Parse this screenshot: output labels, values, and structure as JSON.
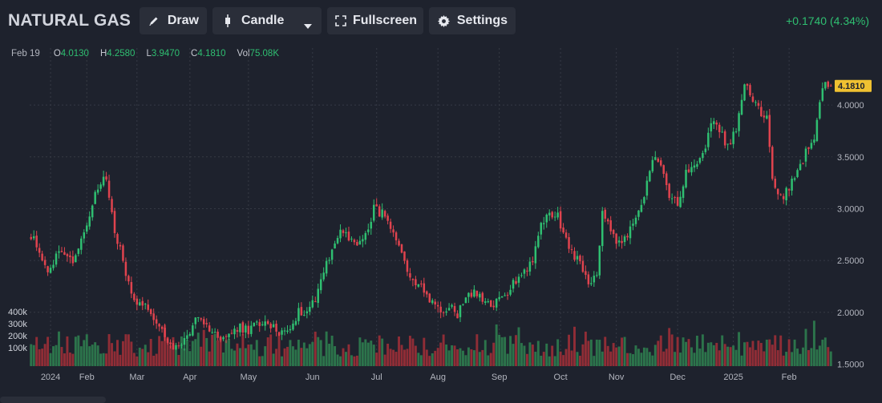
{
  "header": {
    "symbol": "NATURAL GAS",
    "draw_label": "Draw",
    "candle_label": "Candle",
    "fullscreen_label": "Fullscreen",
    "settings_label": "Settings",
    "change": "+0.1740 (4.34%)"
  },
  "ohlc": {
    "date": "Feb 19",
    "o_key": "O",
    "o": "4.0130",
    "h_key": "H",
    "h": "4.2580",
    "l_key": "L",
    "l": "3.9470",
    "c_key": "C",
    "c": "4.1810",
    "vol_key": "Vol",
    "vol": "75.08K"
  },
  "colors": {
    "up": "#2fbf71",
    "down": "#e0434e",
    "background": "#1e222d",
    "grid": "#363a45",
    "last_price_tag": "#f0c131"
  },
  "chart_data": {
    "type": "candlestick",
    "title": "NATURAL GAS",
    "price_axis": {
      "ticks": [
        1.5,
        2.0,
        2.5,
        3.0,
        3.5,
        4.0
      ],
      "tick_labels": [
        "1.5000",
        "2.0000",
        "2.5000",
        "3.0000",
        "3.5000",
        "4.0000"
      ],
      "range": [
        1.48,
        4.55
      ]
    },
    "volume_axis": {
      "ticks": [
        100000,
        200000,
        300000,
        400000
      ],
      "tick_labels": [
        "100k",
        "200k",
        "300k",
        "400k"
      ]
    },
    "x_axis": {
      "labels": [
        "2024",
        "Feb",
        "Mar",
        "Apr",
        "May",
        "Jun",
        "Jul",
        "Aug",
        "Sep",
        "Oct",
        "Nov",
        "Dec",
        "2025",
        "Feb"
      ],
      "label_index": [
        7,
        20,
        38,
        57,
        78,
        101,
        124,
        146,
        168,
        190,
        210,
        232,
        252,
        272
      ]
    },
    "last_price": "4.1810",
    "path": [
      [
        0,
        2.75
      ],
      [
        3,
        2.6
      ],
      [
        6,
        2.35
      ],
      [
        9,
        2.55
      ],
      [
        12,
        2.6
      ],
      [
        15,
        2.5
      ],
      [
        18,
        2.7
      ],
      [
        21,
        2.95
      ],
      [
        24,
        3.2
      ],
      [
        27,
        3.3
      ],
      [
        30,
        2.8
      ],
      [
        33,
        2.5
      ],
      [
        36,
        2.15
      ],
      [
        39,
        2.1
      ],
      [
        42,
        2.05
      ],
      [
        45,
        1.92
      ],
      [
        48,
        1.75
      ],
      [
        51,
        1.62
      ],
      [
        54,
        1.7
      ],
      [
        57,
        1.82
      ],
      [
        60,
        1.95
      ],
      [
        63,
        1.88
      ],
      [
        66,
        1.78
      ],
      [
        69,
        1.75
      ],
      [
        72,
        1.8
      ],
      [
        75,
        1.85
      ],
      [
        78,
        1.82
      ],
      [
        81,
        1.9
      ],
      [
        84,
        1.88
      ],
      [
        87,
        1.85
      ],
      [
        90,
        1.8
      ],
      [
        93,
        1.86
      ],
      [
        96,
        2.0
      ],
      [
        99,
        2.02
      ],
      [
        102,
        2.15
      ],
      [
        105,
        2.4
      ],
      [
        108,
        2.6
      ],
      [
        111,
        2.8
      ],
      [
        114,
        2.7
      ],
      [
        117,
        2.65
      ],
      [
        120,
        2.75
      ],
      [
        123,
        3.0
      ],
      [
        126,
        2.95
      ],
      [
        129,
        2.8
      ],
      [
        132,
        2.6
      ],
      [
        135,
        2.4
      ],
      [
        138,
        2.3
      ],
      [
        141,
        2.2
      ],
      [
        144,
        2.1
      ],
      [
        147,
        2.02
      ],
      [
        150,
        2.05
      ],
      [
        153,
        1.98
      ],
      [
        156,
        2.15
      ],
      [
        159,
        2.2
      ],
      [
        162,
        2.1
      ],
      [
        165,
        2.05
      ],
      [
        168,
        2.12
      ],
      [
        171,
        2.2
      ],
      [
        174,
        2.32
      ],
      [
        177,
        2.4
      ],
      [
        180,
        2.5
      ],
      [
        183,
        2.85
      ],
      [
        186,
        2.95
      ],
      [
        189,
        2.92
      ],
      [
        192,
        2.7
      ],
      [
        195,
        2.55
      ],
      [
        198,
        2.4
      ],
      [
        201,
        2.25
      ],
      [
        203,
        2.4
      ],
      [
        205,
        2.95
      ],
      [
        208,
        2.8
      ],
      [
        211,
        2.65
      ],
      [
        214,
        2.75
      ],
      [
        217,
        2.9
      ],
      [
        220,
        3.1
      ],
      [
        223,
        3.5
      ],
      [
        226,
        3.4
      ],
      [
        229,
        3.1
      ],
      [
        232,
        3.05
      ],
      [
        235,
        3.35
      ],
      [
        238,
        3.45
      ],
      [
        241,
        3.5
      ],
      [
        244,
        3.85
      ],
      [
        247,
        3.75
      ],
      [
        250,
        3.6
      ],
      [
        253,
        3.75
      ],
      [
        256,
        4.2
      ],
      [
        259,
        4.05
      ],
      [
        262,
        3.9
      ],
      [
        264,
        3.9
      ],
      [
        266,
        3.25
      ],
      [
        269,
        3.1
      ],
      [
        272,
        3.2
      ],
      [
        275,
        3.35
      ],
      [
        278,
        3.55
      ],
      [
        281,
        3.7
      ],
      [
        284,
        4.18
      ]
    ]
  }
}
